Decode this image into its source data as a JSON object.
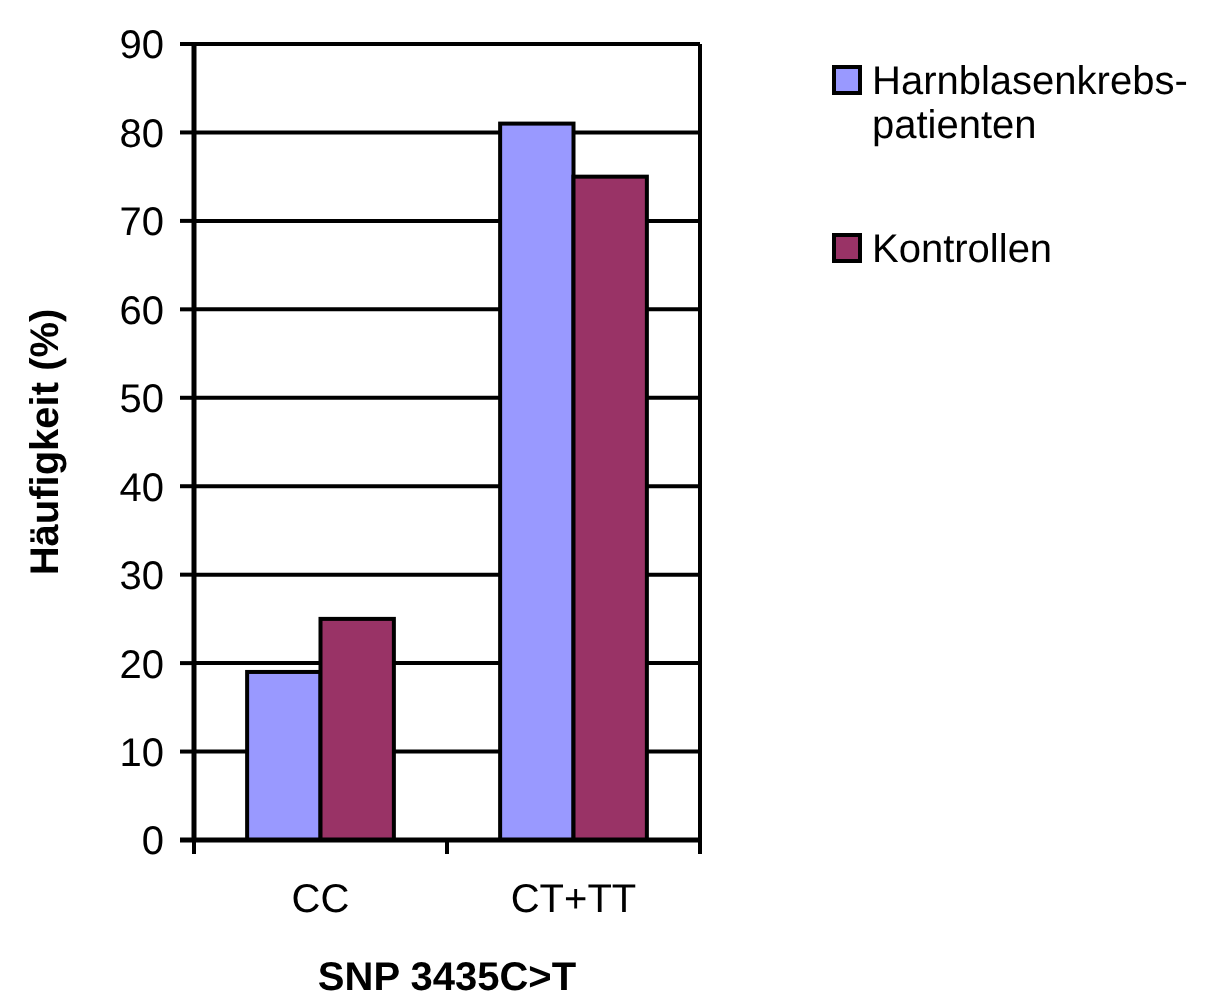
{
  "chart_data": {
    "type": "bar",
    "categories": [
      "CC",
      "CT+TT"
    ],
    "series": [
      {
        "name": "Harnblasenkrebs-patienten",
        "color": "#9999ff",
        "values": [
          19,
          81
        ]
      },
      {
        "name": "Kontrollen",
        "color": "#993366",
        "values": [
          25,
          75
        ]
      }
    ],
    "xlabel": "SNP 3435C>T",
    "ylabel": "Häufigkeit (%)",
    "ylim": [
      0,
      90
    ],
    "yticks": [
      0,
      10,
      20,
      30,
      40,
      50,
      60,
      70,
      80,
      90
    ],
    "grid": "y",
    "legend": "top right"
  }
}
